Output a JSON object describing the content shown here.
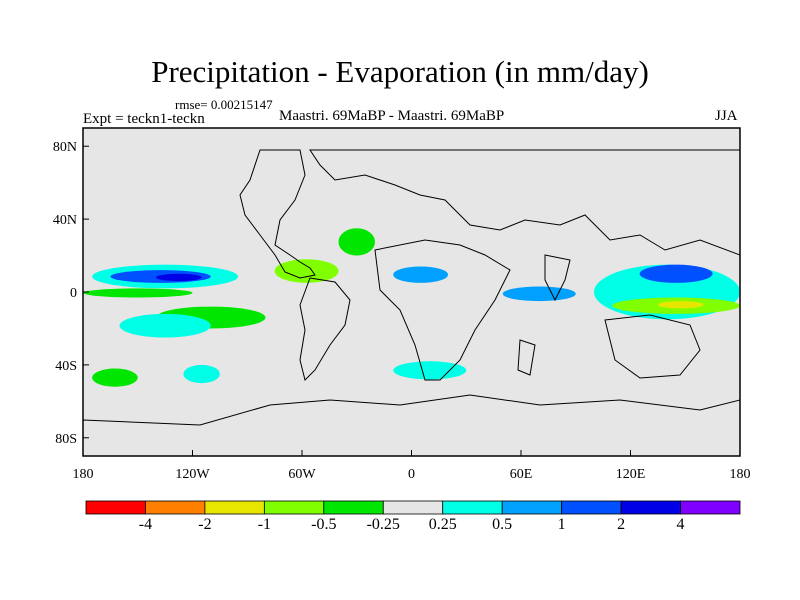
{
  "figure": {
    "title": "Precipitation - Evaporation (in mm/day)",
    "rmse_text": "rmse= 0.00215147",
    "experiment_text": "Expt = teckn1-teckn",
    "case_text": "Maastri.  69MaBP - Maastri.  69MaBP",
    "season": "JJA"
  },
  "axes": {
    "x_ticks": [
      {
        "value": -180,
        "label": "180"
      },
      {
        "value": -120,
        "label": "120W"
      },
      {
        "value": -60,
        "label": "60W"
      },
      {
        "value": 0,
        "label": "0"
      },
      {
        "value": 60,
        "label": "60E"
      },
      {
        "value": 120,
        "label": "120E"
      },
      {
        "value": 180,
        "label": "180"
      }
    ],
    "y_ticks": [
      {
        "value": 80,
        "label": "80N"
      },
      {
        "value": 40,
        "label": "40N"
      },
      {
        "value": 0,
        "label": "0"
      },
      {
        "value": -40,
        "label": "40S"
      },
      {
        "value": -80,
        "label": "80S"
      }
    ],
    "lon_range": [
      -180,
      180
    ],
    "lat_range": [
      -90,
      90
    ]
  },
  "colorbar": {
    "colors": [
      "#ff0000",
      "#ff8000",
      "#e6e600",
      "#80ff00",
      "#00e600",
      "#e6e6e6",
      "#00ffe6",
      "#00a0ff",
      "#0050ff",
      "#0000e6",
      "#8000ff"
    ],
    "labels": [
      "-4",
      "-2",
      "-1",
      "-0.5",
      "-0.25",
      "0.25",
      "0.5",
      "1",
      "2",
      "4"
    ]
  },
  "background_color": "#e6e6e6",
  "regions": [
    {
      "name": "positive-band-pacific-north",
      "color": "#00ffe6",
      "lon": [
        -175,
        -95
      ],
      "lat": [
        2,
        15
      ]
    },
    {
      "name": "strong-band-pacific-north",
      "color": "#0050ff",
      "lon": [
        -165,
        -110
      ],
      "lat": [
        5,
        12
      ]
    },
    {
      "name": "core-band-pacific-north",
      "color": "#0000e6",
      "lon": [
        -140,
        -115
      ],
      "lat": [
        6,
        10
      ]
    },
    {
      "name": "negative-band-pacific-equator",
      "color": "#00e600",
      "lon": [
        -180,
        -120
      ],
      "lat": [
        -3,
        2
      ]
    },
    {
      "name": "negative-band-pacific-south",
      "color": "#00e600",
      "lon": [
        -140,
        -80
      ],
      "lat": [
        -20,
        -8
      ]
    },
    {
      "name": "positive-patch-pacific-south",
      "color": "#00ffe6",
      "lon": [
        -160,
        -110
      ],
      "lat": [
        -25,
        -12
      ]
    },
    {
      "name": "negative-patch-central-america",
      "color": "#80ff00",
      "lon": [
        -75,
        -40
      ],
      "lat": [
        5,
        18
      ]
    },
    {
      "name": "negative-patch-atlantic-north",
      "color": "#00e600",
      "lon": [
        -40,
        -20
      ],
      "lat": [
        20,
        35
      ]
    },
    {
      "name": "positive-patch-africa-west",
      "color": "#00a0ff",
      "lon": [
        -10,
        20
      ],
      "lat": [
        5,
        14
      ]
    },
    {
      "name": "positive-patch-south-atlantic",
      "color": "#00ffe6",
      "lon": [
        -10,
        30
      ],
      "lat": [
        -48,
        -38
      ]
    },
    {
      "name": "positive-band-indian",
      "color": "#00a0ff",
      "lon": [
        50,
        90
      ],
      "lat": [
        -5,
        3
      ]
    },
    {
      "name": "positive-band-west-pacific",
      "color": "#00ffe6",
      "lon": [
        100,
        180
      ],
      "lat": [
        -15,
        15
      ]
    },
    {
      "name": "strong-band-west-pacific",
      "color": "#0050ff",
      "lon": [
        125,
        165
      ],
      "lat": [
        5,
        15
      ]
    },
    {
      "name": "negative-band-south-west-pacific",
      "color": "#80ff00",
      "lon": [
        110,
        180
      ],
      "lat": [
        -12,
        -3
      ]
    },
    {
      "name": "yellow-core-south-west-pacific",
      "color": "#e6e600",
      "lon": [
        135,
        160
      ],
      "lat": [
        -9,
        -5
      ]
    },
    {
      "name": "negative-patch-south-pacific-west",
      "color": "#00e600",
      "lon": [
        -175,
        -150
      ],
      "lat": [
        -52,
        -42
      ]
    },
    {
      "name": "positive-patch-south-pacific-east",
      "color": "#00ffe6",
      "lon": [
        -125,
        -105
      ],
      "lat": [
        -50,
        -40
      ]
    }
  ]
}
